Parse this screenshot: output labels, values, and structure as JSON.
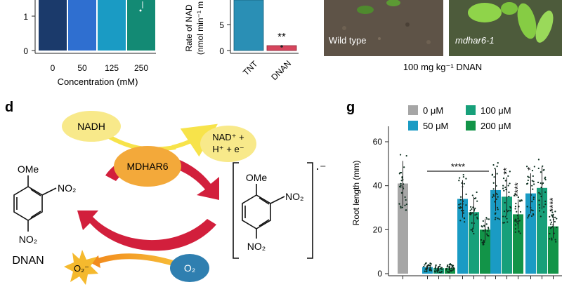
{
  "panel_labels": {
    "d": "d",
    "g": "g"
  },
  "chart_conc": {
    "type": "bar",
    "xlabel": "Concentration (mM)",
    "categories": [
      "0",
      "50",
      "125",
      "250"
    ],
    "yticks": [
      "1",
      "0"
    ],
    "colors": [
      "#1b3a6b",
      "#2f6fd0",
      "#1a9bc4",
      "#138a74"
    ]
  },
  "chart_rate": {
    "type": "bar",
    "ylabel_line1": "Rate of NAD",
    "ylabel_line2": "(nmol min⁻¹ m",
    "categories": [
      "TNT",
      "DNAN"
    ],
    "yticks": [
      "5",
      "0"
    ],
    "significance": "**",
    "colors": [
      "#2a8fb5",
      "#d6455d"
    ]
  },
  "photos": {
    "left_label": "Wild type",
    "right_label": "mdhar6-1",
    "caption": "100 mg kg⁻¹ DNAN"
  },
  "diagram": {
    "nadh": "NADH",
    "nad_line1": "NAD⁺ +",
    "nad_line2": "H⁺ + e⁻",
    "enzyme": "MDHAR6",
    "ome": "OMe",
    "no2": "NO₂",
    "name": "DNAN",
    "radical": "·⁻",
    "o2": "O₂",
    "superoxide": "O₂⁻"
  },
  "chart_data": {
    "type": "bar",
    "title": "",
    "ylabel": "Root length (mm)",
    "ylim": [
      0,
      65
    ],
    "yticks": [
      0,
      20,
      40,
      60
    ],
    "legend": [
      {
        "label": "0 μM",
        "color": "#a6a6a6"
      },
      {
        "label": "50 μM",
        "color": "#1a9bc4"
      },
      {
        "label": "100 μM",
        "color": "#17a07a"
      },
      {
        "label": "200 μM",
        "color": "#129448"
      }
    ],
    "legend_position": "top",
    "groups": [
      {
        "bars": [
          {
            "conc": "0 μM",
            "value": 41
          }
        ],
        "sig": []
      },
      {
        "bars": [
          {
            "conc": "50 μM",
            "value": 3
          },
          {
            "conc": "100 μM",
            "value": 2.5
          },
          {
            "conc": "200 μM",
            "value": 2.5
          }
        ],
        "sig": []
      },
      {
        "bars": [
          {
            "conc": "50 μM",
            "value": 34
          },
          {
            "conc": "100 μM",
            "value": 28
          },
          {
            "conc": "200 μM",
            "value": 20
          }
        ],
        "sig": []
      },
      {
        "bars": [
          {
            "conc": "50 μM",
            "value": 38
          },
          {
            "conc": "100 μM",
            "value": 35
          },
          {
            "conc": "200 μM",
            "value": 27
          }
        ],
        "sig": [
          "",
          "**",
          "****"
        ]
      },
      {
        "bars": [
          {
            "conc": "50 μM",
            "value": 36.5
          },
          {
            "conc": "100 μM",
            "value": 39
          },
          {
            "conc": "200 μM",
            "value": 21.5
          }
        ],
        "sig": [
          "*",
          "",
          "****"
        ]
      }
    ],
    "bracket_label": "****"
  }
}
